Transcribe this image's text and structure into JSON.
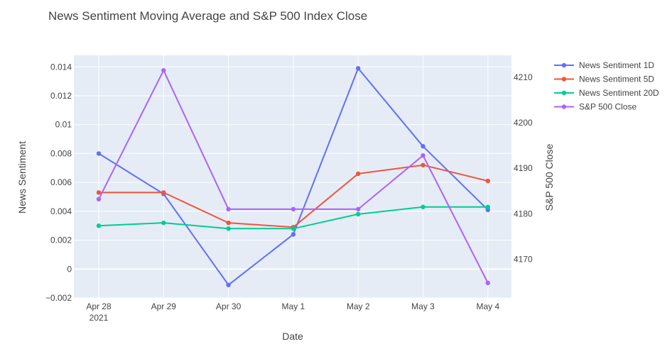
{
  "chart_data": {
    "type": "line",
    "title": "News Sentiment Moving Average and S&P 500 Index Close",
    "xlabel": "Date",
    "ylabel": "News Sentiment",
    "y2label": "S&P 500 Close",
    "categories": [
      "Apr 28",
      "Apr 29",
      "Apr 30",
      "May 1",
      "May 2",
      "May 3",
      "May 4"
    ],
    "x_year_label": "2021",
    "ylim": [
      -0.002,
      0.0148
    ],
    "y_ticks": [
      -0.002,
      0,
      0.002,
      0.004,
      0.006,
      0.008,
      0.01,
      0.012,
      0.014
    ],
    "y_tick_labels": [
      "−0.002",
      "0",
      "0.002",
      "0.004",
      "0.006",
      "0.008",
      "0.01",
      "0.012",
      "0.014"
    ],
    "y2lim": [
      4161.5,
      4214.8
    ],
    "y2_ticks": [
      4170,
      4180,
      4190,
      4200,
      4210
    ],
    "y2_tick_labels": [
      "4170",
      "4180",
      "4190",
      "4200",
      "4210"
    ],
    "grid": true,
    "legend_position": "top-right",
    "series": [
      {
        "name": "News Sentiment 1D",
        "axis": "y",
        "color": "#636efa",
        "values": [
          0.008,
          0.0052,
          -0.0011,
          0.0024,
          0.0139,
          0.0085,
          0.0041
        ]
      },
      {
        "name": "News Sentiment 5D",
        "axis": "y",
        "color": "#ef553b",
        "values": [
          0.0053,
          0.0053,
          0.0032,
          0.0029,
          0.0066,
          0.0072,
          0.0061
        ]
      },
      {
        "name": "News Sentiment 20D",
        "axis": "y",
        "color": "#00cc96",
        "values": [
          0.003,
          0.0032,
          0.0028,
          0.0028,
          0.0038,
          0.0043,
          0.0043
        ]
      },
      {
        "name": "S&P 500 Close",
        "axis": "y2",
        "color": "#ab63fa",
        "values": [
          4183.2,
          4211.5,
          4181.0,
          4181.0,
          4181.0,
          4192.8,
          4164.8
        ]
      }
    ]
  }
}
